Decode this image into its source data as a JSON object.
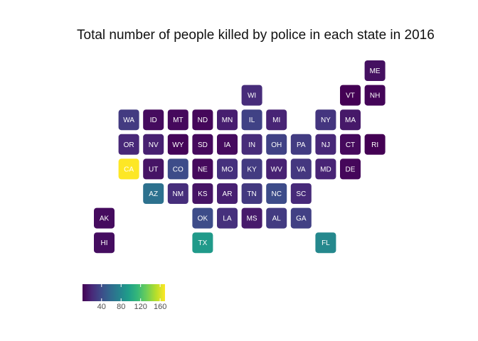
{
  "chart_data": {
    "type": "heatmap",
    "title": "Total number of people killed by police in each state in 2016",
    "color_scale": "viridis",
    "value_range": [
      1,
      170
    ],
    "legend": {
      "position": "bottom-left",
      "breaks": [
        40,
        80,
        120,
        160
      ]
    },
    "states": [
      {
        "state": "ME",
        "col": 11,
        "row": 0,
        "value": 8
      },
      {
        "state": "WI",
        "col": 6,
        "row": 1,
        "value": 22
      },
      {
        "state": "VT",
        "col": 10,
        "row": 1,
        "value": 1
      },
      {
        "state": "NH",
        "col": 11,
        "row": 1,
        "value": 3
      },
      {
        "state": "WA",
        "col": 1,
        "row": 2,
        "value": 30
      },
      {
        "state": "ID",
        "col": 2,
        "row": 2,
        "value": 6
      },
      {
        "state": "MT",
        "col": 3,
        "row": 2,
        "value": 5
      },
      {
        "state": "ND",
        "col": 4,
        "row": 2,
        "value": 4
      },
      {
        "state": "MN",
        "col": 5,
        "row": 2,
        "value": 15
      },
      {
        "state": "IL",
        "col": 6,
        "row": 2,
        "value": 34
      },
      {
        "state": "MI",
        "col": 7,
        "row": 2,
        "value": 18
      },
      {
        "state": "NY",
        "col": 9,
        "row": 2,
        "value": 27
      },
      {
        "state": "MA",
        "col": 10,
        "row": 2,
        "value": 12
      },
      {
        "state": "OR",
        "col": 1,
        "row": 3,
        "value": 20
      },
      {
        "state": "NV",
        "col": 2,
        "row": 3,
        "value": 16
      },
      {
        "state": "WY",
        "col": 3,
        "row": 3,
        "value": 3
      },
      {
        "state": "SD",
        "col": 4,
        "row": 3,
        "value": 5
      },
      {
        "state": "IA",
        "col": 5,
        "row": 3,
        "value": 6
      },
      {
        "state": "IN",
        "col": 6,
        "row": 3,
        "value": 22
      },
      {
        "state": "OH",
        "col": 7,
        "row": 3,
        "value": 34
      },
      {
        "state": "PA",
        "col": 8,
        "row": 3,
        "value": 31
      },
      {
        "state": "NJ",
        "col": 9,
        "row": 3,
        "value": 20
      },
      {
        "state": "CT",
        "col": 10,
        "row": 3,
        "value": 5
      },
      {
        "state": "RI",
        "col": 11,
        "row": 3,
        "value": 1
      },
      {
        "state": "CA",
        "col": 1,
        "row": 4,
        "value": 170
      },
      {
        "state": "UT",
        "col": 2,
        "row": 4,
        "value": 10
      },
      {
        "state": "CO",
        "col": 3,
        "row": 4,
        "value": 40
      },
      {
        "state": "NE",
        "col": 4,
        "row": 4,
        "value": 5
      },
      {
        "state": "MO",
        "col": 5,
        "row": 4,
        "value": 25
      },
      {
        "state": "KY",
        "col": 6,
        "row": 4,
        "value": 30
      },
      {
        "state": "WV",
        "col": 7,
        "row": 4,
        "value": 17
      },
      {
        "state": "VA",
        "col": 8,
        "row": 4,
        "value": 28
      },
      {
        "state": "MD",
        "col": 9,
        "row": 4,
        "value": 18
      },
      {
        "state": "DE",
        "col": 10,
        "row": 4,
        "value": 4
      },
      {
        "state": "AZ",
        "col": 2,
        "row": 5,
        "value": 64
      },
      {
        "state": "NM",
        "col": 3,
        "row": 5,
        "value": 23
      },
      {
        "state": "KS",
        "col": 4,
        "row": 5,
        "value": 10
      },
      {
        "state": "AR",
        "col": 5,
        "row": 5,
        "value": 16
      },
      {
        "state": "TN",
        "col": 6,
        "row": 5,
        "value": 29
      },
      {
        "state": "NC",
        "col": 7,
        "row": 5,
        "value": 40
      },
      {
        "state": "SC",
        "col": 8,
        "row": 5,
        "value": 21
      },
      {
        "state": "AK",
        "col": 0,
        "row": 6,
        "value": 6
      },
      {
        "state": "OK",
        "col": 4,
        "row": 6,
        "value": 40
      },
      {
        "state": "LA",
        "col": 5,
        "row": 6,
        "value": 24
      },
      {
        "state": "MS",
        "col": 6,
        "row": 6,
        "value": 13
      },
      {
        "state": "AL",
        "col": 7,
        "row": 6,
        "value": 30
      },
      {
        "state": "GA",
        "col": 8,
        "row": 6,
        "value": 33
      },
      {
        "state": "HI",
        "col": 0,
        "row": 7,
        "value": 7
      },
      {
        "state": "TX",
        "col": 4,
        "row": 7,
        "value": 92
      },
      {
        "state": "FL",
        "col": 9,
        "row": 7,
        "value": 80
      }
    ]
  }
}
